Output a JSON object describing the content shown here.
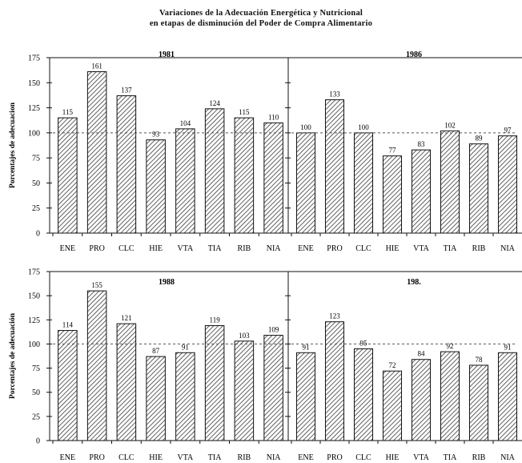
{
  "title_line1": "Variaciones de la Adecuación Energética y Nutricional",
  "title_line2": "en etapas de disminución del Poder de Compra Alimentario",
  "colors": {
    "bar_fill": "#ffffff",
    "hatch": "#333333",
    "axis": "#111111",
    "reference_line": "#555555"
  },
  "chart_data": [
    {
      "type": "bar",
      "title": "1981",
      "ylabel": "Porcentajes de adecuacion",
      "ylim": [
        0,
        175
      ],
      "yticks": [
        0,
        25,
        50,
        75,
        100,
        125,
        150,
        175
      ],
      "categories": [
        "ENE",
        "PRO",
        "CLC",
        "HIE",
        "VTA",
        "TIA",
        "RIB",
        "NIA"
      ],
      "values": [
        115,
        161,
        137,
        93,
        104,
        124,
        115,
        110
      ],
      "reference_line": 100,
      "pattern": "diagonal-hatch"
    },
    {
      "type": "bar",
      "title": "1986",
      "ylabel": "",
      "ylim": [
        0,
        175
      ],
      "categories": [
        "ENE",
        "PRO",
        "CLC",
        "HIE",
        "VTA",
        "TIA",
        "RIB",
        "NIA"
      ],
      "values": [
        100,
        133,
        100,
        77,
        83,
        102,
        89,
        97
      ],
      "reference_line": 100,
      "pattern": "diagonal-hatch"
    },
    {
      "type": "bar",
      "title": "1988",
      "ylabel": "Porcentajes de adecuación",
      "ylim": [
        0,
        175
      ],
      "yticks": [
        0,
        25,
        50,
        75,
        100,
        125,
        150,
        175
      ],
      "categories": [
        "ENE",
        "PRO",
        "CLC",
        "HIE",
        "VTA",
        "TIA",
        "RIB",
        "NIA"
      ],
      "values": [
        114,
        155,
        121,
        87,
        91,
        119,
        103,
        109
      ],
      "reference_line": 100,
      "pattern": "diagonal-hatch"
    },
    {
      "type": "bar",
      "title": "198.",
      "ylabel": "",
      "ylim": [
        0,
        175
      ],
      "categories": [
        "ENE",
        "PRO",
        "CLC",
        "HIE",
        "VTA",
        "TIA",
        "RIB",
        "NIA"
      ],
      "values": [
        91,
        123,
        95,
        72,
        84,
        92,
        78,
        91
      ],
      "reference_line": 100,
      "pattern": "diagonal-hatch"
    }
  ]
}
